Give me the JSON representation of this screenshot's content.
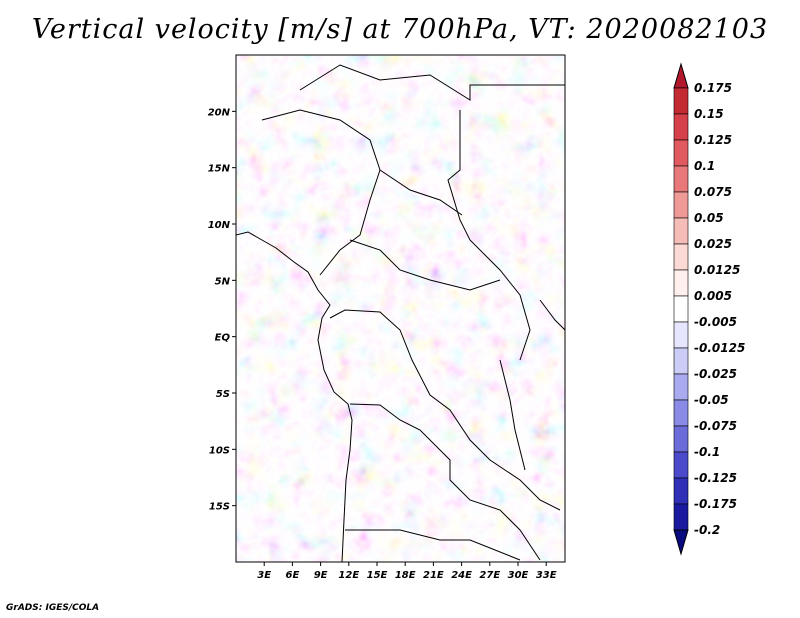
{
  "title": "Vertical velocity [m/s] at 700hPa, VT: 2020082103",
  "credit": "GrADS: IGES/COLA",
  "map": {
    "lat_labels": [
      "20N",
      "15N",
      "10N",
      "5N",
      "EQ",
      "5S",
      "10S",
      "15S"
    ],
    "lat_values": [
      20,
      15,
      10,
      5,
      0,
      -5,
      -10,
      -15
    ],
    "lon_labels": [
      "3E",
      "6E",
      "9E",
      "12E",
      "15E",
      "18E",
      "21E",
      "24E",
      "27E",
      "30E",
      "33E"
    ],
    "lon_values": [
      3,
      6,
      9,
      12,
      15,
      18,
      21,
      24,
      27,
      30,
      33
    ],
    "lon_range": [
      0,
      35
    ],
    "lat_range": [
      -20,
      25
    ]
  },
  "colorbar": {
    "labels": [
      "0.175",
      "0.15",
      "0.125",
      "0.1",
      "0.075",
      "0.05",
      "0.025",
      "0.0125",
      "0.005",
      "-0.005",
      "-0.0125",
      "-0.025",
      "-0.05",
      "-0.075",
      "-0.1",
      "-0.125",
      "-0.175",
      "-0.2"
    ],
    "colors": [
      "#b2182b",
      "#c42a32",
      "#d6404a",
      "#e05a5f",
      "#e8787a",
      "#f09a98",
      "#f6bcb8",
      "#fbd9d4",
      "#fff0ee",
      "#ffffff",
      "#e6e6ff",
      "#cccdf7",
      "#a9aaf0",
      "#8a8be6",
      "#6b6bd9",
      "#4a4acb",
      "#2f2fb8",
      "#1a1aa0",
      "#0a0a80"
    ]
  }
}
